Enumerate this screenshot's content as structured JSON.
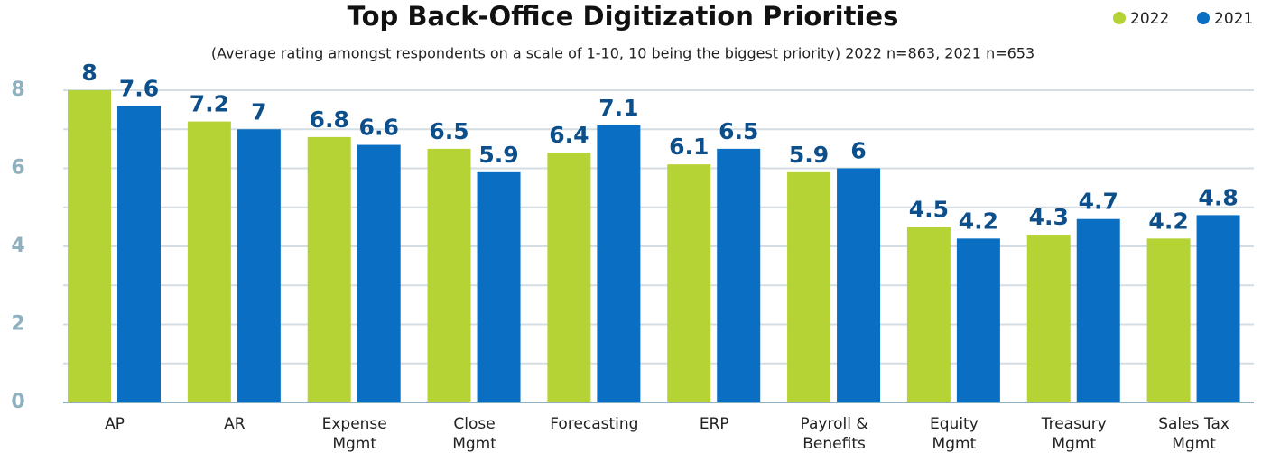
{
  "chart_data": {
    "type": "bar",
    "title": "Top Back-Office Digitization Priorities",
    "subtitle": "(Average rating amongst respondents on a scale of 1-10, 10 being the biggest priority) 2022 n=863, 2021 n=653",
    "categories": [
      [
        "AP"
      ],
      [
        "AR"
      ],
      [
        "Expense",
        "Mgmt"
      ],
      [
        "Close",
        "Mgmt"
      ],
      [
        "Forecasting"
      ],
      [
        "ERP"
      ],
      [
        "Payroll &",
        "Benefits"
      ],
      [
        "Equity",
        "Mgmt"
      ],
      [
        "Treasury",
        "Mgmt"
      ],
      [
        "Sales Tax",
        "Mgmt"
      ]
    ],
    "series": [
      {
        "name": "2022",
        "color": "#b5d334",
        "values": [
          8,
          7.2,
          6.8,
          6.5,
          6.4,
          6.1,
          5.9,
          4.5,
          4.3,
          4.2
        ]
      },
      {
        "name": "2021",
        "color": "#0a6fc2",
        "values": [
          7.6,
          7,
          6.6,
          5.9,
          7.1,
          6.5,
          6,
          4.2,
          4.7,
          4.8
        ]
      }
    ],
    "ylim": [
      0,
      8
    ],
    "yticks": [
      0,
      2,
      4,
      6,
      8
    ],
    "minor_yticks": [
      1,
      3,
      5,
      7
    ],
    "grid": true,
    "legend": "top-right"
  }
}
